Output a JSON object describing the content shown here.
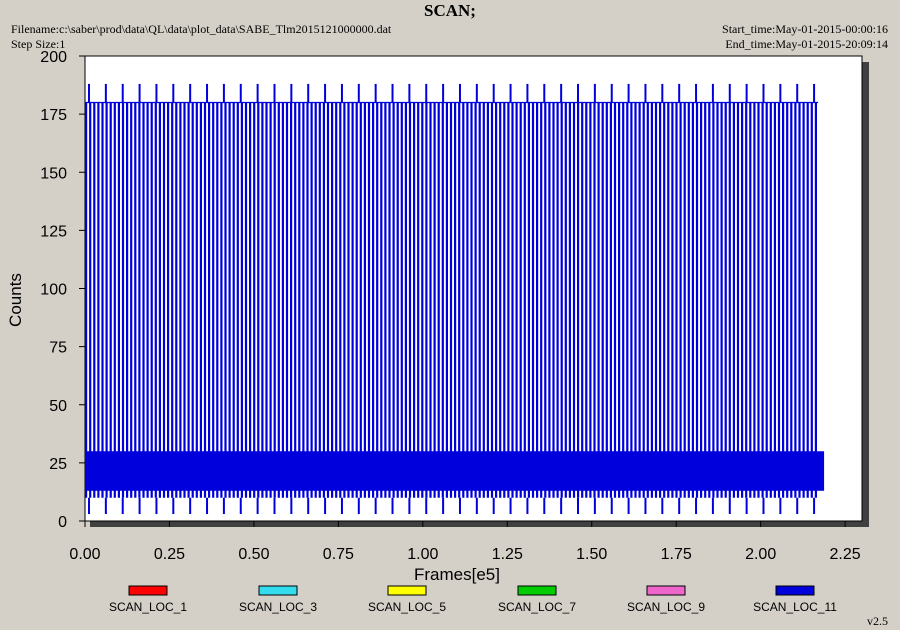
{
  "header": {
    "title": "SCAN;",
    "filename": "Filename:c:\\saber\\prod\\data\\QL\\data\\plot_data\\SABE_Tlm2015121000000.dat",
    "step_size": "Step Size:1",
    "start_time": "Start_time:May-01-2015-00:00:16",
    "end_time": "End_time:May-01-2015-20:09:14"
  },
  "version": "v2.5",
  "colors": {
    "background": "#d4d0c8",
    "plot_area": "#ffffff",
    "shadow": "#404040"
  },
  "chart_data": {
    "type": "line",
    "xlabel": "Frames[e5]",
    "ylabel": "Counts",
    "xlim": [
      0,
      2.3
    ],
    "ylim": [
      0,
      200
    ],
    "x_ticks": [
      "0.00",
      "0.25",
      "0.50",
      "0.75",
      "1.00",
      "1.25",
      "1.50",
      "1.75",
      "2.00",
      "2.25"
    ],
    "y_ticks": [
      "0",
      "25",
      "50",
      "75",
      "100",
      "125",
      "150",
      "175",
      "200"
    ],
    "legend_position": "bottom",
    "x_range_data": [
      0.0,
      2.17
    ],
    "series": [
      {
        "name": "SCAN_LOC_1",
        "color": "#ff0000"
      },
      {
        "name": "SCAN_LOC_3",
        "color": "#33ddee"
      },
      {
        "name": "SCAN_LOC_5",
        "color": "#ffff00"
      },
      {
        "name": "SCAN_LOC_7",
        "color": "#00cc00"
      },
      {
        "name": "SCAN_LOC_9",
        "color": "#ee66cc"
      },
      {
        "name": "SCAN_LOC_11",
        "color": "#0000dd",
        "pattern": {
          "upper_plateau": 180,
          "upper_spikes": 188,
          "band_low": 13,
          "band_high": 30,
          "lower_edge": 10,
          "lower_spikes": 3,
          "spike_count": 44
        }
      }
    ]
  }
}
